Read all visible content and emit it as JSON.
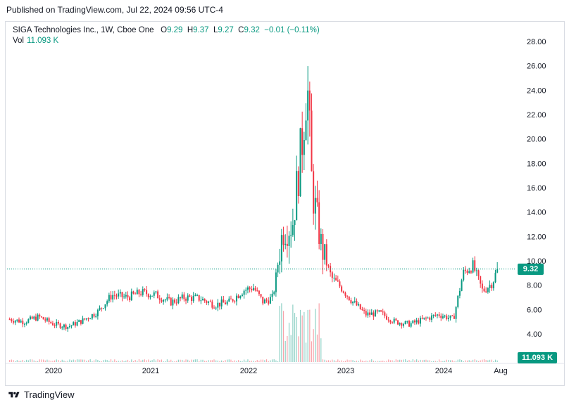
{
  "header": {
    "published_text": "Published on TradingView.com, Jul 22, 2024 09:56 UTC-4"
  },
  "legend": {
    "symbol": "SIGA Technologies Inc., 1W, Cboe One",
    "open_label": "O",
    "open_value": "9.29",
    "high_label": "H",
    "high_value": "9.37",
    "low_label": "L",
    "low_value": "9.27",
    "close_label": "C",
    "close_value": "9.32",
    "change_value": "−0.01 (−0.11%)",
    "vol_label": "Vol",
    "vol_value": "11.093 K"
  },
  "badges": {
    "last_price": "9.32",
    "last_volume": "11.093 K"
  },
  "footer": {
    "brand": "TradingView"
  },
  "colors": {
    "up": "#089981",
    "down": "#f23645",
    "price_line": "#089981",
    "axis_text": "#131722"
  },
  "chart_data": {
    "type": "candlestick",
    "y_axis_ticks": [
      "28.00",
      "26.00",
      "24.00",
      "22.00",
      "20.00",
      "18.00",
      "16.00",
      "14.00",
      "12.00",
      "10.00",
      "8.00",
      "6.00",
      "4.00"
    ],
    "x_axis_ticks": [
      "2020",
      "2021",
      "2022",
      "2023",
      "2024",
      "Aug"
    ],
    "ylim": [
      2.4,
      29
    ],
    "last_close": 9.32,
    "series": [
      {
        "t": 2019.55,
        "c": 5.2
      },
      {
        "t": 2019.7,
        "c": 5.0
      },
      {
        "t": 2019.85,
        "c": 5.4
      },
      {
        "t": 2020.0,
        "c": 4.8
      },
      {
        "t": 2020.15,
        "c": 4.6
      },
      {
        "t": 2020.3,
        "c": 5.1
      },
      {
        "t": 2020.45,
        "c": 5.8
      },
      {
        "t": 2020.6,
        "c": 7.2
      },
      {
        "t": 2020.75,
        "c": 7.0
      },
      {
        "t": 2020.9,
        "c": 7.4
      },
      {
        "t": 2021.05,
        "c": 7.2
      },
      {
        "t": 2021.2,
        "c": 6.6
      },
      {
        "t": 2021.35,
        "c": 7.0
      },
      {
        "t": 2021.5,
        "c": 6.9
      },
      {
        "t": 2021.65,
        "c": 6.4
      },
      {
        "t": 2021.8,
        "c": 6.6
      },
      {
        "t": 2021.95,
        "c": 7.6
      },
      {
        "t": 2022.05,
        "c": 7.8
      },
      {
        "t": 2022.15,
        "c": 6.6
      },
      {
        "t": 2022.25,
        "c": 7.0
      },
      {
        "t": 2022.35,
        "c": 12.5
      },
      {
        "t": 2022.45,
        "c": 13.0
      },
      {
        "t": 2022.55,
        "c": 20.0
      },
      {
        "t": 2022.6,
        "c": 25.0
      },
      {
        "t": 2022.65,
        "c": 16.0
      },
      {
        "t": 2022.75,
        "c": 11.0
      },
      {
        "t": 2022.85,
        "c": 8.6
      },
      {
        "t": 2022.95,
        "c": 7.8
      },
      {
        "t": 2023.05,
        "c": 6.8
      },
      {
        "t": 2023.2,
        "c": 5.6
      },
      {
        "t": 2023.35,
        "c": 5.7
      },
      {
        "t": 2023.5,
        "c": 5.0
      },
      {
        "t": 2023.65,
        "c": 4.8
      },
      {
        "t": 2023.8,
        "c": 5.2
      },
      {
        "t": 2023.95,
        "c": 5.6
      },
      {
        "t": 2024.1,
        "c": 5.2
      },
      {
        "t": 2024.2,
        "c": 9.0
      },
      {
        "t": 2024.3,
        "c": 9.6
      },
      {
        "t": 2024.4,
        "c": 7.5
      },
      {
        "t": 2024.5,
        "c": 8.2
      },
      {
        "t": 2024.55,
        "c": 9.32
      }
    ]
  }
}
